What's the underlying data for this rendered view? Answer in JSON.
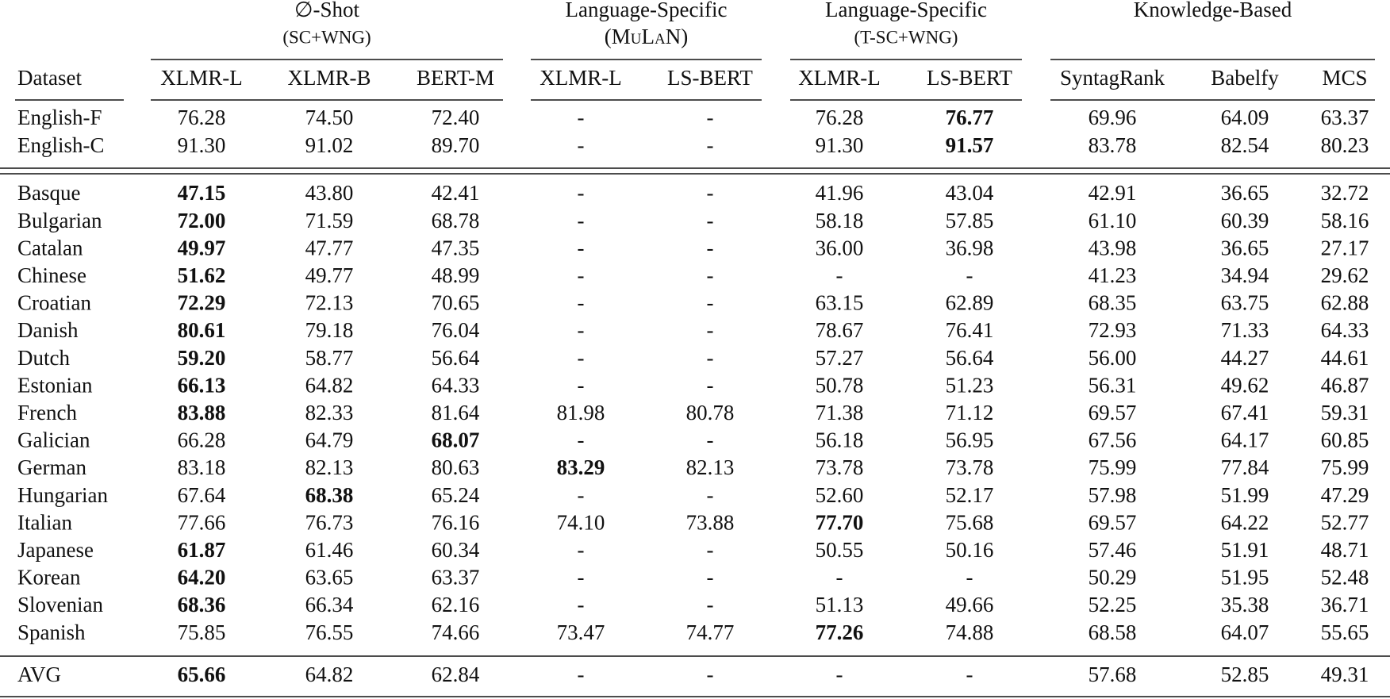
{
  "table": {
    "groups": [
      {
        "title": "∅-Shot",
        "subtitle": "(SC+WNG)"
      },
      {
        "title": "Language-Specific",
        "subtitle": "(MuLaN)"
      },
      {
        "title": "Language-Specific",
        "subtitle": "(T-SC+WNG)"
      },
      {
        "title": "Knowledge-Based"
      }
    ],
    "columns": [
      "Dataset",
      "XLMR-L",
      "XLMR-B",
      "BERT-M",
      "XLMR-L",
      "LS-BERT",
      "XLMR-L",
      "LS-BERT",
      "SyntagRank",
      "Babelfy",
      "MCS"
    ],
    "rows": [
      [
        "English-F",
        "76.28",
        "74.50",
        "72.40",
        "-",
        "-",
        "76.28",
        "76.77",
        "69.96",
        "64.09",
        "63.37"
      ],
      [
        "English-C",
        "91.30",
        "91.02",
        "89.70",
        "-",
        "-",
        "91.30",
        "91.57",
        "83.78",
        "82.54",
        "80.23"
      ],
      [
        "Basque",
        "47.15",
        "43.80",
        "42.41",
        "-",
        "-",
        "41.96",
        "43.04",
        "42.91",
        "36.65",
        "32.72"
      ],
      [
        "Bulgarian",
        "72.00",
        "71.59",
        "68.78",
        "-",
        "-",
        "58.18",
        "57.85",
        "61.10",
        "60.39",
        "58.16"
      ],
      [
        "Catalan",
        "49.97",
        "47.77",
        "47.35",
        "-",
        "-",
        "36.00",
        "36.98",
        "43.98",
        "36.65",
        "27.17"
      ],
      [
        "Chinese",
        "51.62",
        "49.77",
        "48.99",
        "-",
        "-",
        "-",
        "-",
        "41.23",
        "34.94",
        "29.62"
      ],
      [
        "Croatian",
        "72.29",
        "72.13",
        "70.65",
        "-",
        "-",
        "63.15",
        "62.89",
        "68.35",
        "63.75",
        "62.88"
      ],
      [
        "Danish",
        "80.61",
        "79.18",
        "76.04",
        "-",
        "-",
        "78.67",
        "76.41",
        "72.93",
        "71.33",
        "64.33"
      ],
      [
        "Dutch",
        "59.20",
        "58.77",
        "56.64",
        "-",
        "-",
        "57.27",
        "56.64",
        "56.00",
        "44.27",
        "44.61"
      ],
      [
        "Estonian",
        "66.13",
        "64.82",
        "64.33",
        "-",
        "-",
        "50.78",
        "51.23",
        "56.31",
        "49.62",
        "46.87"
      ],
      [
        "French",
        "83.88",
        "82.33",
        "81.64",
        "81.98",
        "80.78",
        "71.38",
        "71.12",
        "69.57",
        "67.41",
        "59.31"
      ],
      [
        "Galician",
        "66.28",
        "64.79",
        "68.07",
        "-",
        "-",
        "56.18",
        "56.95",
        "67.56",
        "64.17",
        "60.85"
      ],
      [
        "German",
        "83.18",
        "82.13",
        "80.63",
        "83.29",
        "82.13",
        "73.78",
        "73.78",
        "75.99",
        "77.84",
        "75.99"
      ],
      [
        "Hungarian",
        "67.64",
        "68.38",
        "65.24",
        "-",
        "-",
        "52.60",
        "52.17",
        "57.98",
        "51.99",
        "47.29"
      ],
      [
        "Italian",
        "77.66",
        "76.73",
        "76.16",
        "74.10",
        "73.88",
        "77.70",
        "75.68",
        "69.57",
        "64.22",
        "52.77"
      ],
      [
        "Japanese",
        "61.87",
        "61.46",
        "60.34",
        "-",
        "-",
        "50.55",
        "50.16",
        "57.46",
        "51.91",
        "48.71"
      ],
      [
        "Korean",
        "64.20",
        "63.65",
        "63.37",
        "-",
        "-",
        "-",
        "-",
        "50.29",
        "51.95",
        "52.48"
      ],
      [
        "Slovenian",
        "68.36",
        "66.34",
        "62.16",
        "-",
        "-",
        "51.13",
        "49.66",
        "52.25",
        "35.38",
        "36.71"
      ],
      [
        "Spanish",
        "75.85",
        "76.55",
        "74.66",
        "73.47",
        "74.77",
        "77.26",
        "74.88",
        "68.58",
        "64.07",
        "55.65"
      ],
      [
        "AVG",
        "65.66",
        "64.82",
        "62.84",
        "-",
        "-",
        "-",
        "-",
        "57.68",
        "52.85",
        "49.31"
      ]
    ],
    "bold": [
      [
        7
      ],
      [
        7
      ],
      [
        1
      ],
      [
        1
      ],
      [
        1
      ],
      [
        1
      ],
      [
        1
      ],
      [
        1
      ],
      [
        1
      ],
      [
        1
      ],
      [
        1
      ],
      [
        3
      ],
      [
        4
      ],
      [
        2
      ],
      [
        6
      ],
      [
        1
      ],
      [
        1
      ],
      [
        1
      ],
      [
        6
      ],
      [
        1
      ]
    ]
  }
}
